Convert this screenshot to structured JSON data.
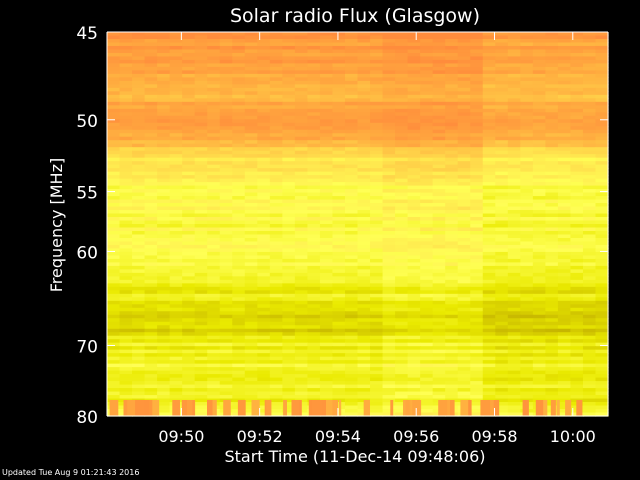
{
  "chart_data": {
    "type": "heatmap",
    "title": "Solar radio Flux (Glasgow)",
    "xlabel": "Start Time (11-Dec-14 09:48:06)",
    "ylabel": "Frequency [MHz]",
    "x_ticks": [
      "09:50",
      "09:52",
      "09:54",
      "09:56",
      "09:58",
      "10:00"
    ],
    "y_ticks": [
      45,
      50,
      55,
      60,
      70,
      80
    ],
    "ylim": [
      45,
      80
    ],
    "y_scale": "reciprocal",
    "x_start": "09:48:06",
    "x_end": "10:00:54",
    "colormap": [
      "#7a6a00",
      "#c8b800",
      "#eaea00",
      "#ffff55",
      "#ffd84a",
      "#ffb040",
      "#ff8c3c"
    ],
    "intensity_profile": [
      {
        "frequency_mhz": 45.0,
        "level": 0.95
      },
      {
        "frequency_mhz": 47.0,
        "level": 0.9
      },
      {
        "frequency_mhz": 48.0,
        "level": 0.75
      },
      {
        "frequency_mhz": 49.0,
        "level": 0.88
      },
      {
        "frequency_mhz": 50.5,
        "level": 0.9
      },
      {
        "frequency_mhz": 51.5,
        "level": 0.82
      },
      {
        "frequency_mhz": 52.5,
        "level": 0.6
      },
      {
        "frequency_mhz": 55.0,
        "level": 0.5
      },
      {
        "frequency_mhz": 58.0,
        "level": 0.48
      },
      {
        "frequency_mhz": 60.0,
        "level": 0.52
      },
      {
        "frequency_mhz": 63.0,
        "level": 0.4
      },
      {
        "frequency_mhz": 66.0,
        "level": 0.3
      },
      {
        "frequency_mhz": 68.0,
        "level": 0.25
      },
      {
        "frequency_mhz": 70.0,
        "level": 0.38
      },
      {
        "frequency_mhz": 74.0,
        "level": 0.42
      },
      {
        "frequency_mhz": 78.0,
        "level": 0.4
      },
      {
        "frequency_mhz": 80.0,
        "level": 0.55
      }
    ],
    "grid": false,
    "legend": "none"
  },
  "footer": {
    "updated": "Updated Tue Aug  9 01:21:43 2016"
  }
}
